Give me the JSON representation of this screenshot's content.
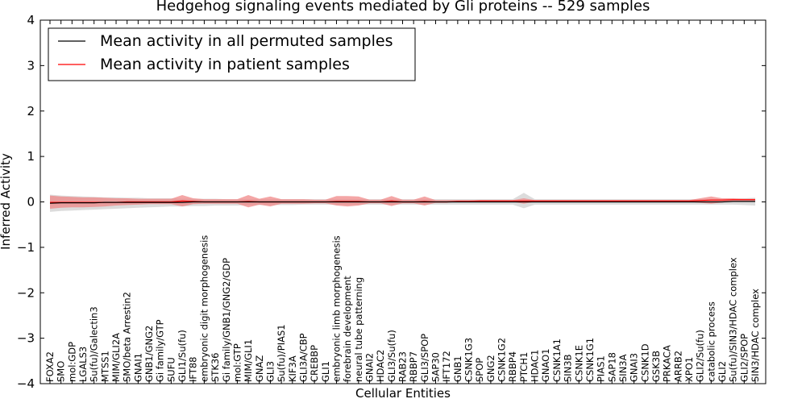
{
  "chart_data": {
    "type": "line",
    "title": "Hedgehog signaling events mediated by Gli proteins -- 529 samples",
    "xlabel": "Cellular Entities",
    "ylabel": "Inferred Activity",
    "ylim": [
      -4,
      4
    ],
    "yticks": [
      "4",
      "3",
      "2",
      "1",
      "0",
      "−1",
      "−2",
      "−3",
      "−4"
    ],
    "legend_position": "top-left",
    "colors": {
      "permuted": "#000000",
      "patient": "#ff0000",
      "patient_band": "#f08080",
      "permuted_band": "#bfbfbf"
    },
    "categories": [
      "FOXA2",
      "SMO",
      "mol:GDP",
      "LGALS3",
      "Su(fu)/Galectin3",
      "MTSS1",
      "MIM/GLI2A",
      "SMO/beta Arrestin2",
      "GNAI1",
      "GNB1/GNG2",
      "Gi family/GTP",
      "SUFU",
      "GLI1/Su(fu)",
      "IFT88",
      "embryonic digit morphogenesis",
      "STK36",
      "Gi family/GNB1/GNG2/GDP",
      "mol:GTP",
      "MIM/GLI1",
      "GNAZ",
      "GLI3",
      "Su(fu)/PIAS1",
      "KIF3A",
      "GLI3A/CBP",
      "CREBBP",
      "GLI1",
      "embryonic limb morphogenesis",
      "forebrain development",
      "neural tube patterning",
      "GNAI2",
      "HDAC2",
      "GLI3/Su(fu)",
      "RAB23",
      "RBBP7",
      "GLI3/SPOP",
      "SAP30",
      "IFT172",
      "GNB1",
      "CSNK1G3",
      "SPOP",
      "GNG2",
      "CSNK1G2",
      "RBBP4",
      "PTCH1",
      "HDAC1",
      "GNAO1",
      "CSNK1A1",
      "SIN3B",
      "CSNK1E",
      "CSNK1G1",
      "PIAS1",
      "SAP18",
      "SIN3A",
      "GNAI3",
      "CSNK1D",
      "GSK3B",
      "PRKACA",
      "ARRB2",
      "XPO1",
      "GLI2/Su(fu)",
      "catabolic process",
      "GLI2",
      "Su(fu)/SIN3/HDAC complex",
      "GLI2/SPOP",
      "SIN3/HDAC complex"
    ],
    "series": [
      {
        "name": "Mean activity in all permuted samples",
        "values": [
          -0.03,
          -0.02,
          -0.02,
          -0.02,
          -0.02,
          -0.01,
          -0.01,
          -0.01,
          -0.01,
          -0.01,
          -0.01,
          -0.01,
          -0.01,
          0.0,
          0.0,
          0.0,
          0.0,
          0.0,
          0.0,
          0.0,
          0.0,
          0.0,
          0.0,
          0.0,
          0.0,
          0.0,
          0.0,
          0.0,
          0.0,
          0.0,
          0.0,
          0.0,
          0.0,
          0.0,
          0.0,
          0.0,
          0.0,
          0.0,
          0.0,
          0.0,
          0.0,
          0.0,
          0.0,
          0.0,
          0.0,
          0.0,
          0.0,
          0.0,
          0.0,
          0.0,
          0.0,
          0.0,
          0.0,
          0.0,
          0.0,
          0.0,
          0.0,
          0.0,
          0.0,
          0.0,
          0.0,
          0.0,
          0.01,
          0.01,
          0.01
        ],
        "lower": [
          -0.22,
          -0.2,
          -0.19,
          -0.18,
          -0.17,
          -0.16,
          -0.15,
          -0.14,
          -0.13,
          -0.12,
          -0.11,
          -0.1,
          -0.1,
          -0.09,
          -0.09,
          -0.08,
          -0.08,
          -0.08,
          -0.07,
          -0.07,
          -0.07,
          -0.07,
          -0.07,
          -0.06,
          -0.06,
          -0.06,
          -0.06,
          -0.06,
          -0.06,
          -0.06,
          -0.06,
          -0.06,
          -0.06,
          -0.06,
          -0.06,
          -0.06,
          -0.06,
          -0.06,
          -0.06,
          -0.06,
          -0.06,
          -0.06,
          -0.06,
          -0.14,
          -0.06,
          -0.06,
          -0.06,
          -0.06,
          -0.06,
          -0.06,
          -0.06,
          -0.06,
          -0.06,
          -0.06,
          -0.06,
          -0.06,
          -0.06,
          -0.06,
          -0.06,
          -0.06,
          -0.06,
          -0.06,
          -0.06,
          -0.07,
          -0.08
        ],
        "upper": [
          0.16,
          0.14,
          0.13,
          0.12,
          0.11,
          0.1,
          0.1,
          0.09,
          0.09,
          0.08,
          0.08,
          0.08,
          0.07,
          0.07,
          0.07,
          0.07,
          0.06,
          0.06,
          0.06,
          0.06,
          0.06,
          0.06,
          0.06,
          0.06,
          0.06,
          0.06,
          0.06,
          0.06,
          0.06,
          0.06,
          0.06,
          0.06,
          0.06,
          0.06,
          0.06,
          0.06,
          0.06,
          0.06,
          0.06,
          0.06,
          0.06,
          0.06,
          0.06,
          0.2,
          0.06,
          0.06,
          0.06,
          0.06,
          0.06,
          0.06,
          0.06,
          0.06,
          0.06,
          0.06,
          0.06,
          0.06,
          0.06,
          0.06,
          0.06,
          0.06,
          0.06,
          0.06,
          0.07,
          0.08,
          0.09
        ]
      },
      {
        "name": "Mean activity in patient samples",
        "values": [
          -0.01,
          -0.01,
          -0.01,
          -0.01,
          -0.01,
          -0.01,
          -0.01,
          0.0,
          0.0,
          0.0,
          0.0,
          0.0,
          0.02,
          0.01,
          0.0,
          0.0,
          0.0,
          0.0,
          0.01,
          0.0,
          0.0,
          0.0,
          0.0,
          0.0,
          0.0,
          0.0,
          0.01,
          0.01,
          0.01,
          0.0,
          0.0,
          0.02,
          0.0,
          0.0,
          0.01,
          0.0,
          0.0,
          0.01,
          0.01,
          0.02,
          0.02,
          0.02,
          0.02,
          0.02,
          0.02,
          0.02,
          0.02,
          0.02,
          0.02,
          0.02,
          0.02,
          0.02,
          0.02,
          0.02,
          0.02,
          0.02,
          0.02,
          0.02,
          0.02,
          0.03,
          0.04,
          0.04,
          0.05,
          0.05,
          0.05
        ],
        "lower": [
          -0.15,
          -0.13,
          -0.12,
          -0.12,
          -0.11,
          -0.1,
          -0.08,
          -0.07,
          -0.06,
          -0.05,
          -0.05,
          -0.05,
          -0.1,
          -0.05,
          -0.04,
          -0.04,
          -0.04,
          -0.04,
          -0.12,
          -0.06,
          -0.1,
          -0.04,
          -0.04,
          -0.04,
          -0.03,
          -0.03,
          -0.08,
          -0.1,
          -0.08,
          -0.03,
          -0.03,
          -0.09,
          -0.03,
          -0.03,
          -0.08,
          -0.02,
          -0.02,
          0.0,
          0.0,
          0.0,
          0.0,
          0.0,
          0.0,
          -0.04,
          0.0,
          0.0,
          0.0,
          0.0,
          0.0,
          0.0,
          0.0,
          0.0,
          0.0,
          0.0,
          0.0,
          0.0,
          0.0,
          0.0,
          0.0,
          -0.02,
          -0.04,
          -0.01,
          0.02,
          0.02,
          0.02
        ],
        "upper": [
          0.14,
          0.12,
          0.11,
          0.1,
          0.1,
          0.09,
          0.08,
          0.08,
          0.07,
          0.07,
          0.07,
          0.07,
          0.15,
          0.08,
          0.06,
          0.06,
          0.06,
          0.06,
          0.15,
          0.07,
          0.12,
          0.06,
          0.06,
          0.06,
          0.05,
          0.05,
          0.13,
          0.13,
          0.12,
          0.05,
          0.05,
          0.13,
          0.05,
          0.05,
          0.12,
          0.04,
          0.04,
          0.04,
          0.04,
          0.04,
          0.04,
          0.04,
          0.04,
          0.08,
          0.04,
          0.04,
          0.04,
          0.04,
          0.04,
          0.04,
          0.04,
          0.04,
          0.04,
          0.04,
          0.04,
          0.04,
          0.04,
          0.04,
          0.04,
          0.08,
          0.12,
          0.08,
          0.08,
          0.07,
          0.07
        ]
      }
    ]
  }
}
